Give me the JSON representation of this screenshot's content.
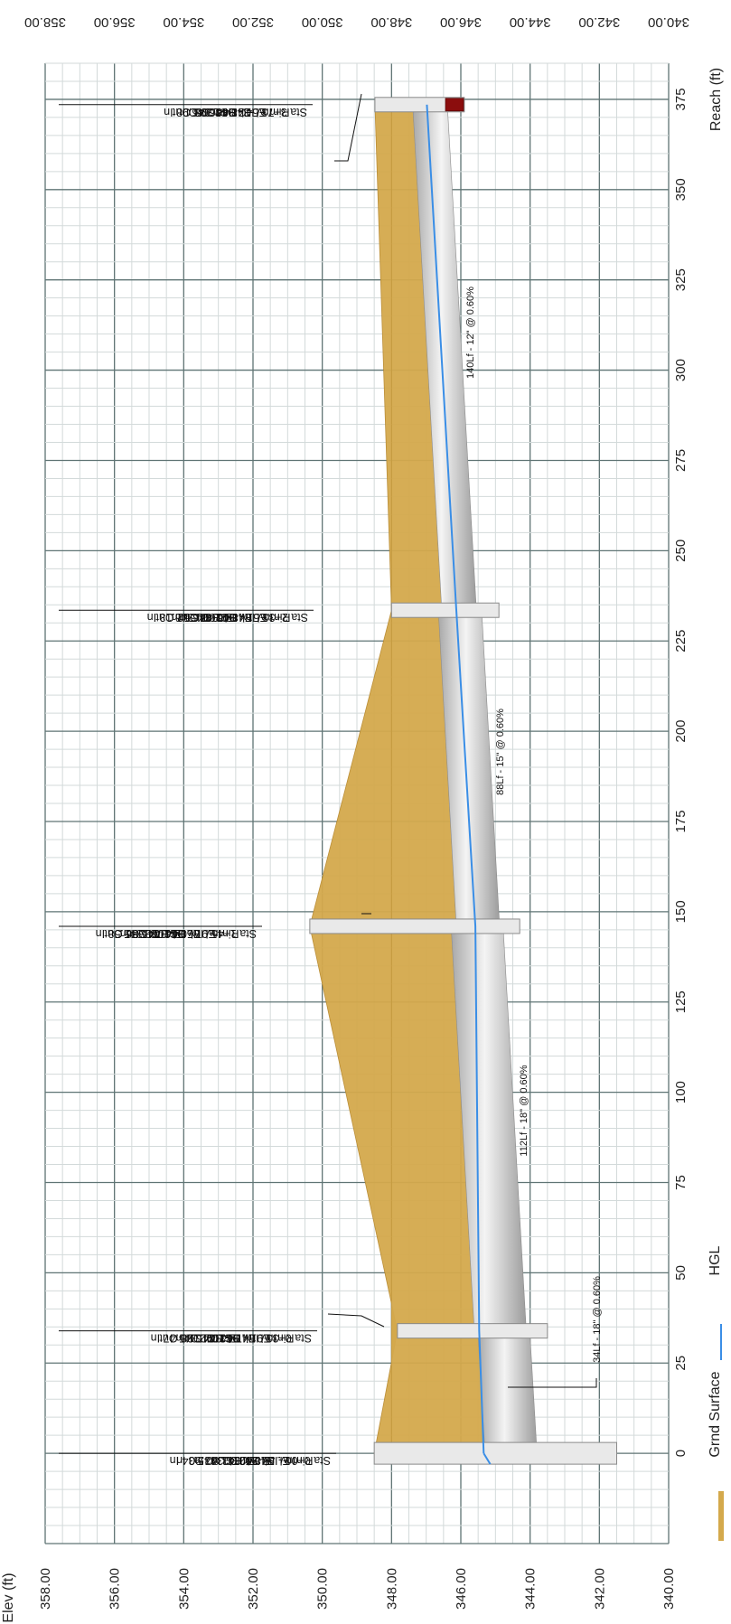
{
  "chart_data": {
    "type": "profile",
    "xlabel": "Reach (ft)",
    "ylabel": "Elev (ft)",
    "xlim": [
      -25,
      385
    ],
    "ylim": [
      340,
      358
    ],
    "x_ticks": [
      "0",
      "25",
      "50",
      "75",
      "100",
      "125",
      "150",
      "175",
      "200",
      "225",
      "250",
      "275",
      "300",
      "325",
      "350",
      "375"
    ],
    "y_ticks": [
      "340.00",
      "342.00",
      "344.00",
      "346.00",
      "348.00",
      "350.00",
      "352.00",
      "354.00",
      "356.00",
      "358.00"
    ],
    "grid": true,
    "legend": [
      {
        "label": "Grnd Surface",
        "color": "#d4a94c"
      },
      {
        "label": "HGL",
        "color": "#3a8ee6"
      }
    ],
    "ground_surface": {
      "x": [
        0,
        33.91,
        145.97,
        233.51,
        373.54
      ],
      "y": [
        348.5,
        347.83,
        350.36,
        348.0,
        348.48
      ]
    },
    "hgl": {
      "x": [
        0,
        33.91,
        145.97,
        233.51,
        373.54
      ],
      "y": [
        345.34,
        345.47,
        345.58,
        346.13,
        346.98
      ]
    },
    "pipes": [
      {
        "label": "34Lf - 18\" @ 0.60%",
        "x_start": 0,
        "x_end": 33.91,
        "inv_start": 343.8,
        "inv_end": 344.01,
        "dia_ft": 1.5
      },
      {
        "label": "112Lf - 18\" @ 0.60%",
        "x_start": 33.91,
        "x_end": 145.97,
        "inv_start": 344.11,
        "inv_end": 344.78,
        "dia_ft": 1.5
      },
      {
        "label": "88Lf - 15\" @ 0.60%",
        "x_start": 145.97,
        "x_end": 233.51,
        "inv_start": 344.88,
        "inv_end": 345.4,
        "dia_ft": 1.25
      },
      {
        "label": "140Lf - 12\" @ 0.60%",
        "x_start": 233.51,
        "x_end": 373.54,
        "inv_start": 345.55,
        "inv_end": 346.39,
        "dia_ft": 1.0
      }
    ],
    "structures": [
      {
        "x": 0,
        "rim": 348.5,
        "bottom": 341.5,
        "annotation": [
          "Sta 0+00 - JB-2001",
          "Rim El. 348.50",
          "Inv. El. 342.00 In",
          "Inv. El. 343.80 In",
          "Inv. El. 343.90 In",
          "HGL 345.34 In"
        ]
      },
      {
        "x": 33.91,
        "rim": 347.83,
        "bottom": 343.5,
        "annotation": [
          "Sta 0+33.91 - DI-2002",
          "Rim El. 347.83",
          "Inv. El. 344.01 Out",
          "Inv. El. 344.11 In",
          "HGL 345.38 Out",
          "HGL 345.47 In"
        ]
      },
      {
        "x": 145.97,
        "rim": 350.36,
        "bottom": 344.3,
        "annotation": [
          "Sta 1+45.97 - DI-2003",
          "Rim El. 350.36",
          "Inv. El. 344.78 Out",
          "Inv. El. 344.88 In",
          "HGL 345.56 Out",
          "HGL 345.58 In"
        ]
      },
      {
        "x": 233.51,
        "rim": 348.0,
        "bottom": 344.9,
        "annotation": [
          "Sta 2+33.51 - DI-2004",
          "Rim El. 348.00",
          "Inv. El. 345.40 Out",
          "Inv. El. 345.55 In",
          "HGL 346.12 Out",
          "HGL 346.13 In"
        ]
      },
      {
        "x": 373.54,
        "rim": 348.48,
        "bottom": 345.9,
        "annotation": [
          "Sta 3+73.54 - DI-2005",
          "Rim El. 348.48",
          "Inv. El. 346.39 Out",
          "HGL 346.98 Out",
          "HGL 346.98 In"
        ]
      }
    ],
    "colors": {
      "ground": "#d4a94c",
      "ground_edge": "#b8892e",
      "hgl": "#3a8ee6",
      "grid_major": "#5f7474",
      "grid_minor": "#d3dada",
      "pipe_dark": "#a9a9a9",
      "pipe_light": "#f2f2f2",
      "structure": "#e9e9e9",
      "structure_edge": "#8a8a8a",
      "end_cap": "#8b0d0d"
    }
  }
}
